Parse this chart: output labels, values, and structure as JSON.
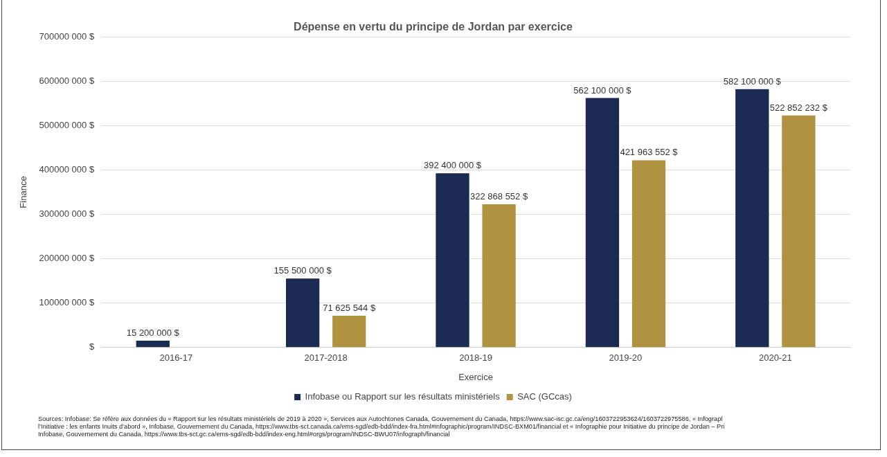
{
  "chart_data": {
    "type": "bar",
    "title": "Dépense en vertu du principe de Jordan par exercice",
    "xlabel": "Exercice",
    "ylabel": "Finance",
    "categories": [
      "2016-17",
      "2017-2018",
      "2018-19",
      "2019-20",
      "2020-21"
    ],
    "series": [
      {
        "name": "Infobase ou Rapport sur les résultats ministériels",
        "color": "#1b2a52",
        "values": [
          15200000,
          155500000,
          392400000,
          562100000,
          582100000
        ],
        "value_labels": [
          "15 200 000 $",
          "155 500 000 $",
          "392 400 000 $",
          "562 100 000 $",
          "582 100 000 $"
        ]
      },
      {
        "name": "SAC (GCcas)",
        "color": "#b09340",
        "values": [
          null,
          71625544,
          322868552,
          421963552,
          522852232
        ],
        "value_labels": [
          null,
          "71 625 544 $",
          "322 868 552 $",
          "421 963 552 $",
          "522 852 232 $"
        ]
      }
    ],
    "ylim": [
      0,
      700000000
    ],
    "yticks": [
      {
        "value": 0,
        "label": "$"
      },
      {
        "value": 100000000,
        "label": "100000 000 $"
      },
      {
        "value": 200000000,
        "label": "200000 000 $"
      },
      {
        "value": 300000000,
        "label": "300000 000 $"
      },
      {
        "value": 400000000,
        "label": "400000 000 $"
      },
      {
        "value": 500000000,
        "label": "500000 000 $"
      },
      {
        "value": 600000000,
        "label": "600000 000 $"
      },
      {
        "value": 700000000,
        "label": "700000 000 $"
      }
    ],
    "grid": "y",
    "legend": "bottom",
    "annotations": [
      "Sources: Infobase: Se réfère aux données du « Rapport sur les résultats ministériels de 2019 à 2020 », Services aux Autochtones Canada, Gouvernement du Canada,  https://www.sac-isc.gc.ca/eng/1603722953624/1603722975586, « Infograpl",
      "l’Initiative : les enfants Inuits d’abord », Infobase, Gouvernement du Canada, https://www.tbs-sct.canada.ca/ems-sgd/edb-bdd/index-fra.html#infographic/program/INDSC-BXM01/financial et « Infographie pour Initiative du principe de Jordan – Pri",
      "Infobase, Gouvernement du Canada, https://www.tbs-sct.gc.ca/ems-sgd/edb-bdd/index-eng.html#orgs/program/INDSC-BWU07/infograph/financial"
    ]
  }
}
